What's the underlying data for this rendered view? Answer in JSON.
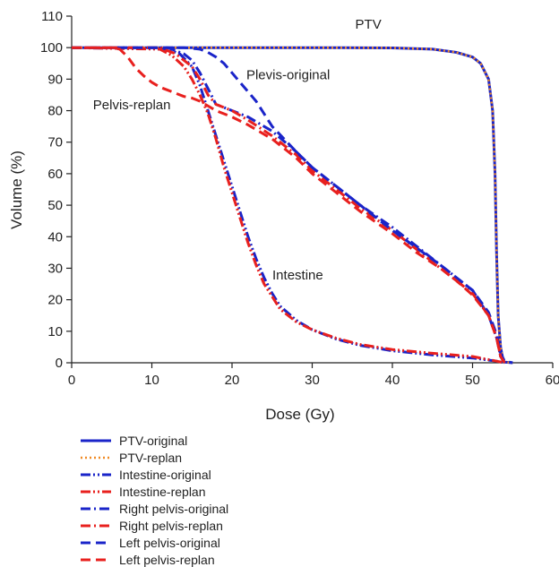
{
  "chart_data": {
    "type": "line",
    "title": "",
    "xlabel": "Dose (Gy)",
    "ylabel": "Volume (%)",
    "xlim": [
      0,
      60
    ],
    "ylim": [
      0,
      110
    ],
    "xticks": [
      0,
      10,
      20,
      30,
      40,
      50,
      60
    ],
    "yticks": [
      0,
      10,
      20,
      30,
      40,
      50,
      60,
      70,
      80,
      90,
      100,
      110
    ],
    "grid": false,
    "legend_position": "bottom",
    "annotations": [
      {
        "text": "PTV",
        "x": 37,
        "y": 106
      },
      {
        "text": "Plevis-original",
        "x": 27,
        "y": 90
      },
      {
        "text": "Pelvis-replan",
        "x": 7.5,
        "y": 80.5
      },
      {
        "text": "Intestine",
        "x": 28.2,
        "y": 26.5
      }
    ],
    "series": [
      {
        "name": "PTV-original",
        "color": "#1a24c9",
        "dash": "solid",
        "x": [
          0,
          30,
          40,
          45,
          48,
          50,
          51,
          52,
          52.5,
          52.8,
          53,
          53.2,
          53.5,
          53.8,
          54,
          55
        ],
        "y": [
          100,
          100,
          99.9,
          99.5,
          98.5,
          97,
          95,
          90,
          80,
          60,
          35,
          15,
          5,
          1,
          0.2,
          0
        ]
      },
      {
        "name": "PTV-replan",
        "color": "#f08a24",
        "dash": "dotted",
        "x": [
          0,
          30,
          40,
          45,
          48,
          50,
          51,
          52,
          52.5,
          52.8,
          53,
          53.2,
          53.5,
          53.8,
          54,
          55
        ],
        "y": [
          100,
          100,
          99.9,
          99.5,
          98.5,
          97,
          95,
          90,
          80,
          60,
          35,
          15,
          5,
          1,
          0.2,
          0
        ]
      },
      {
        "name": "Intestine-original",
        "color": "#1a24c9",
        "dash": "dashdotdot",
        "x": [
          0,
          12,
          13.5,
          15,
          16,
          17,
          18,
          19,
          20,
          21,
          22,
          23,
          24,
          25,
          26,
          28,
          30,
          33,
          36,
          40,
          45,
          50,
          53,
          54
        ],
        "y": [
          100,
          99.5,
          98,
          94,
          88,
          80,
          72,
          64,
          56,
          48,
          40,
          33,
          27,
          22,
          18,
          13.5,
          10.5,
          7.5,
          5.5,
          3.8,
          2.5,
          1.5,
          0.5,
          0
        ]
      },
      {
        "name": "Intestine-replan",
        "color": "#e8201e",
        "dash": "dashdotdot",
        "x": [
          0,
          11,
          12.5,
          14,
          15,
          16,
          17,
          18,
          19,
          20,
          21,
          22,
          23,
          24,
          25,
          26,
          28,
          30,
          33,
          36,
          40,
          45,
          50,
          53,
          54
        ],
        "y": [
          100,
          99.5,
          97.5,
          94,
          90,
          85,
          79,
          71,
          62,
          54,
          46,
          38,
          31,
          25,
          21,
          17,
          13,
          10.5,
          7.8,
          5.8,
          4.2,
          3,
          2,
          0.5,
          0
        ]
      },
      {
        "name": "Right pelvis-original",
        "color": "#1a24c9",
        "dash": "dashdot",
        "x": [
          0,
          12,
          13,
          14,
          15,
          16,
          17,
          18,
          20,
          22,
          25,
          28,
          30,
          33,
          36,
          40,
          43,
          46,
          48,
          50,
          52,
          53,
          53.5,
          54
        ],
        "y": [
          100,
          100,
          99,
          98,
          96,
          92,
          87,
          82,
          80,
          78,
          73.5,
          67,
          62,
          56,
          50,
          43,
          37,
          31,
          27,
          23,
          15,
          8,
          2,
          0
        ]
      },
      {
        "name": "Right pelvis-replan",
        "color": "#e8201e",
        "dash": "dashdot",
        "x": [
          0,
          11,
          12,
          13,
          14,
          15,
          16,
          17,
          18,
          20,
          22,
          25,
          28,
          30,
          33,
          36,
          40,
          43,
          46,
          48,
          50,
          52,
          53,
          53.5,
          54
        ],
        "y": [
          100,
          100,
          99,
          98,
          96,
          94,
          90,
          85,
          82,
          80,
          77,
          72,
          66,
          61,
          55,
          49,
          42,
          36,
          30,
          26,
          22,
          15,
          8,
          2,
          0
        ]
      },
      {
        "name": "Left pelvis-original",
        "color": "#1a24c9",
        "dash": "dashed",
        "x": [
          0,
          14,
          15,
          16,
          17,
          18,
          19,
          20,
          21,
          22,
          23,
          25,
          28,
          30,
          33,
          36,
          40,
          43,
          46,
          48,
          50,
          52,
          53,
          53.5,
          54,
          55
        ],
        "y": [
          100,
          100,
          99.8,
          99.5,
          98.5,
          97,
          95,
          92,
          89,
          86,
          83,
          75,
          67,
          62,
          56,
          50,
          42,
          36.5,
          31,
          27,
          23,
          16,
          9,
          3,
          0.5,
          0
        ]
      },
      {
        "name": "Left pelvis-replan",
        "color": "#e8201e",
        "dash": "dashed",
        "x": [
          0,
          5,
          6,
          7,
          8,
          9,
          10,
          11,
          12,
          13,
          14,
          15,
          16,
          18,
          20,
          22,
          25,
          28,
          30,
          33,
          36,
          40,
          43,
          46,
          48,
          50,
          52,
          53,
          53.5,
          54
        ],
        "y": [
          100,
          100,
          99.5,
          97,
          93.5,
          91,
          89,
          87.5,
          86.5,
          85.5,
          84.5,
          84,
          83,
          80,
          78,
          75.5,
          71,
          65,
          60,
          54,
          48,
          41,
          35,
          30,
          26,
          21.5,
          15,
          8,
          2,
          0
        ]
      }
    ]
  }
}
